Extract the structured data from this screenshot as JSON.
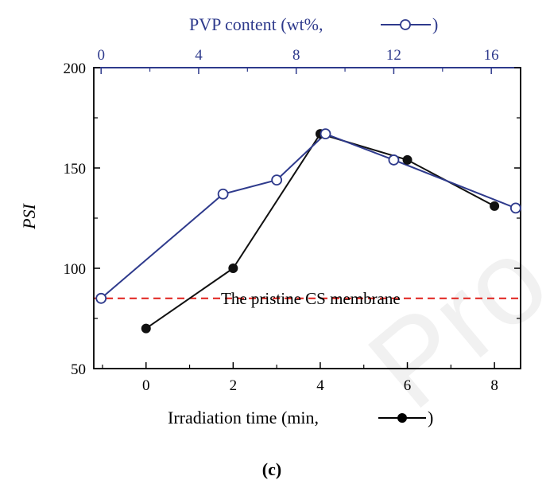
{
  "chart_data": {
    "type": "line",
    "title": "",
    "panel_label": "(c)",
    "ylabel": "PSI",
    "xlabel_bottom": "Irradiation time (min, ",
    "xlabel_bottom_suffix": ")",
    "xlabel_top": "PVP content (wt%, ",
    "xlabel_top_suffix": ")",
    "ylim": [
      50,
      200
    ],
    "yticks": [
      50,
      100,
      150,
      200
    ],
    "xlim_bottom": [
      -1.2,
      8.6
    ],
    "xticks_bottom": [
      0,
      2,
      4,
      6,
      8
    ],
    "xlim_top": [
      -0.3,
      17.2
    ],
    "xticks_top": [
      0,
      4,
      8,
      12,
      16
    ],
    "annotation": "The pristine CS membrane",
    "reference_line": {
      "y": 85,
      "color": "#e0201b",
      "style": "dashed"
    },
    "series": [
      {
        "name": "Irradiation time",
        "axis": "bottom",
        "marker": "filled-circle",
        "color": "#111111",
        "x": [
          0,
          2,
          4,
          6,
          8
        ],
        "y": [
          70,
          100,
          167,
          154,
          131
        ]
      },
      {
        "name": "PVP content",
        "axis": "top",
        "marker": "open-circle",
        "color": "#2e3a8c",
        "x": [
          0,
          5,
          7.2,
          9.2,
          12,
          17
        ],
        "y": [
          85,
          137,
          144,
          167,
          154,
          130
        ]
      }
    ],
    "watermark": "Pro"
  }
}
